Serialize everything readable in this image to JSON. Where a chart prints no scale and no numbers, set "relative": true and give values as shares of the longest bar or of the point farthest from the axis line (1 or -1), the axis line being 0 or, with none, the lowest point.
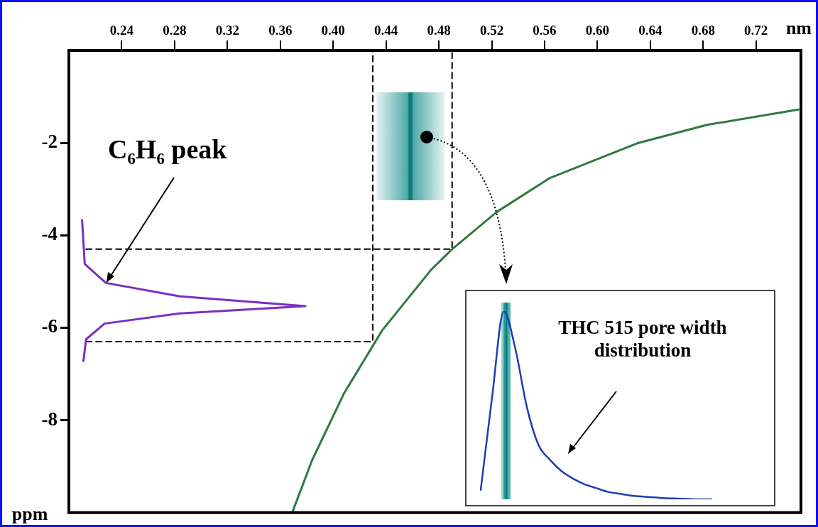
{
  "chart_data": [
    {
      "type": "line",
      "xlabel": "nm",
      "ylabel": "ppm",
      "xlim": [
        0.2,
        0.754
      ],
      "ylim": [
        -10,
        0
      ],
      "xticks": [
        0.24,
        0.28,
        0.32,
        0.36,
        {
          "value": 0.4,
          "label": "0.40"
        },
        0.44,
        0.48,
        0.52,
        0.56,
        {
          "value": 0.6,
          "label": "0.60"
        },
        0.64,
        0.68,
        0.72
      ],
      "yticks": [
        -2,
        -4,
        -6,
        -8
      ],
      "grid": false,
      "legend": false,
      "marker": "none",
      "annotations": [
        "C₆H₆ peak"
      ],
      "series": [
        {
          "color": "#2f7a3f",
          "x": [
            0.369,
            0.384,
            0.408,
            0.437,
            0.474,
            0.49,
            0.524,
            0.564,
            0.63,
            0.683,
            0.752
          ],
          "values": [
            -10,
            -8.87,
            -7.43,
            -6.06,
            -4.75,
            -4.3,
            -3.49,
            -2.76,
            -2.01,
            -1.61,
            -1.28
          ]
        },
        {
          "color": "#7a2fc0",
          "x": [
            0.21,
            0.212,
            0.228,
            0.284,
            0.379,
            0.284,
            0.227,
            0.213,
            0.211
          ],
          "values": [
            -3.67,
            -4.62,
            -5.03,
            -5.32,
            -5.53,
            -5.69,
            -5.91,
            -6.25,
            -6.72
          ]
        },
        {
          "color": "#000000",
          "line_style": "dashed",
          "x": [
            0.213,
            0.49,
            0.49
          ],
          "values": [
            -4.3,
            -4.3,
            0
          ]
        },
        {
          "color": "#000000",
          "line_style": "dashed",
          "x": [
            0.213,
            0.43,
            0.43
          ],
          "values": [
            -6.3,
            -6.3,
            0
          ]
        }
      ]
    },
    {
      "type": "line",
      "relative": true,
      "legend": false,
      "marker": "none",
      "annotations": [
        "THC 515 pore width distribution"
      ],
      "categories": [
        null,
        null,
        null,
        null,
        null,
        null,
        null,
        null,
        null,
        null,
        null,
        null,
        null,
        null,
        null,
        null,
        null,
        null,
        null,
        null,
        null
      ],
      "series": [
        {
          "color": "#1c3db5",
          "values": [
            0.05,
            0.55,
            1,
            0.8,
            0.49,
            0.29,
            0.21,
            0.15,
            0.11,
            0.08,
            0.06,
            0.04,
            0.03,
            0.02,
            0.015,
            0.01,
            0.006,
            0.004,
            0.002,
            0,
            0
          ]
        }
      ]
    }
  ]
}
